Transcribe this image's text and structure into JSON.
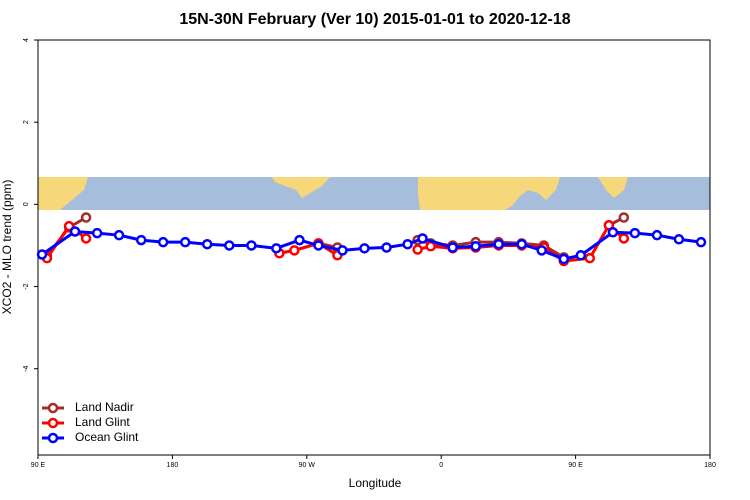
{
  "chart_data": {
    "type": "line",
    "title": "15N-30N February (Ver 10)   2015-01-01 to 2020-12-18",
    "x_label": "Longitude",
    "y_label": "XCO2 - MLO trend (ppm)",
    "xlim": [
      90,
      540
    ],
    "ylim": [
      -6.1,
      4
    ],
    "xticks": [
      {
        "value": 90,
        "label": "90 E"
      },
      180,
      {
        "value": 270,
        "label": "90 W"
      },
      {
        "value": 360,
        "label": "0"
      },
      {
        "value": 450,
        "label": "90 E"
      },
      {
        "value": 540,
        "label": "180"
      }
    ],
    "yticks": [
      -4,
      -2,
      0,
      2,
      4
    ],
    "legend": "bottom-left",
    "series": [
      {
        "name": "Land Nadir",
        "color": "#a52a2a",
        "x": [
          96.0,
          110.8,
          122.2,
          null,
          277.8,
          290.5,
          null,
          344.2,
          353.0,
          367.7,
          383.1,
          398.5,
          413.9,
          428.7,
          442.1,
          null,
          472.3,
          482.3
        ],
        "values": [
          -1.26,
          -0.56,
          -0.32,
          null,
          -0.95,
          -1.05,
          null,
          -0.87,
          -0.95,
          -1.0,
          -0.92,
          -0.92,
          -0.95,
          -1.0,
          -1.29,
          null,
          -0.51,
          -0.32
        ]
      },
      {
        "name": "Land Glint",
        "color": "#ff0000",
        "x": [
          96.0,
          110.8,
          122.2,
          null,
          251.6,
          261.7,
          277.8,
          290.5,
          null,
          344.2,
          353.0,
          367.7,
          383.1,
          398.5,
          413.9,
          428.7,
          442.1,
          459.5,
          472.3,
          482.3
        ],
        "values": [
          -1.31,
          -0.53,
          -0.83,
          null,
          -1.19,
          -1.12,
          -0.95,
          -1.24,
          null,
          -1.1,
          -1.02,
          -1.07,
          -1.05,
          -1.0,
          -1.0,
          -1.05,
          -1.38,
          -1.31,
          -0.51,
          -0.83
        ]
      },
      {
        "name": "Ocean Glint",
        "color": "#0000ff",
        "x": [
          92.7,
          114.8,
          129.6,
          144.3,
          159.1,
          173.8,
          188.6,
          203.3,
          218.1,
          232.9,
          249.6,
          265.1,
          277.8,
          293.9,
          308.6,
          323.4,
          337.5,
          347.5,
          367.7,
          383.1,
          398.5,
          413.9,
          427.3,
          442.1,
          453.5,
          475.0,
          489.7,
          504.5,
          519.2,
          534.0
        ],
        "values": [
          -1.22,
          -0.66,
          -0.7,
          -0.75,
          -0.87,
          -0.92,
          -0.92,
          -0.97,
          -1.0,
          -1.0,
          -1.07,
          -0.87,
          -1.0,
          -1.12,
          -1.07,
          -1.05,
          -0.97,
          -0.83,
          -1.05,
          -1.02,
          -0.97,
          -0.97,
          -1.12,
          -1.33,
          -1.24,
          -0.68,
          -0.7,
          -0.75,
          -0.85,
          -0.92
        ]
      }
    ]
  }
}
